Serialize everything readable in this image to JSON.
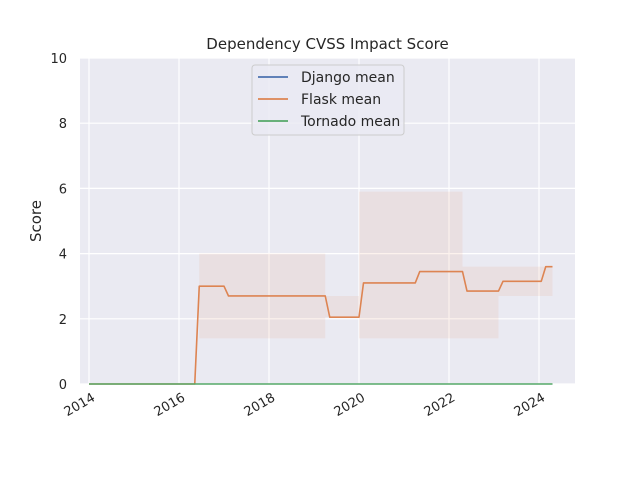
{
  "chart_data": {
    "type": "line",
    "title": "Dependency CVSS Impact Score",
    "xlabel": "",
    "ylabel": "Score",
    "xlim": [
      2013.8,
      2024.8
    ],
    "ylim": [
      0,
      10
    ],
    "x_ticks": [
      2014,
      2016,
      2018,
      2020,
      2022,
      2024
    ],
    "y_ticks": [
      0,
      2,
      4,
      6,
      8,
      10
    ],
    "grid": true,
    "legend_position": "top-center",
    "series": [
      {
        "name": "Django mean",
        "color": "#4c72b0",
        "x": [],
        "y": []
      },
      {
        "name": "Flask mean",
        "color": "#dd8452",
        "x": [
          2014.0,
          2016.35,
          2016.45,
          2017.0,
          2017.1,
          2019.25,
          2019.35,
          2020.0,
          2020.1,
          2021.25,
          2021.35,
          2022.3,
          2022.4,
          2023.1,
          2023.2,
          2024.05,
          2024.15,
          2024.3
        ],
        "y": [
          0.0,
          0.0,
          3.0,
          3.0,
          2.7,
          2.7,
          2.05,
          2.05,
          3.1,
          3.1,
          3.45,
          3.45,
          2.85,
          2.85,
          3.15,
          3.15,
          3.6,
          3.6
        ]
      },
      {
        "name": "Tornado mean",
        "color": "#55a868",
        "x": [
          2014.0,
          2024.3
        ],
        "y": [
          0.0,
          0.0
        ]
      }
    ],
    "bands": [
      {
        "x0": 2016.45,
        "x1": 2019.25,
        "y0": 1.4,
        "y1": 4.0
      },
      {
        "x0": 2019.25,
        "x1": 2020.0,
        "y0": 2.05,
        "y1": 2.7
      },
      {
        "x0": 2020.0,
        "x1": 2022.3,
        "y0": 1.4,
        "y1": 5.9
      },
      {
        "x0": 2022.3,
        "x1": 2023.1,
        "y0": 1.4,
        "y1": 3.6
      },
      {
        "x0": 2023.1,
        "x1": 2024.3,
        "y0": 2.7,
        "y1": 3.6
      }
    ],
    "band_color": "#dd8452"
  }
}
